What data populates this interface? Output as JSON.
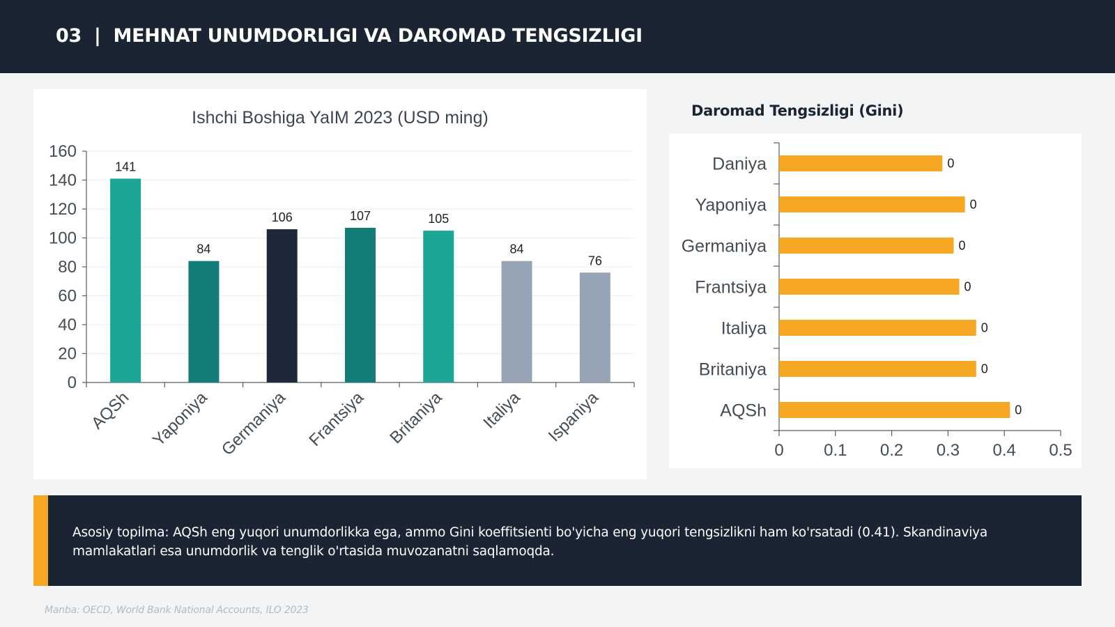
{
  "header": {
    "number": "03",
    "separator": "|",
    "title": "MEHNAT UNUMDORLIGI VA DAROMAD TENGSIZLIGI"
  },
  "colors": {
    "header_bg": "#1b2432",
    "accent": "#f5a623",
    "teal": "#1aa594",
    "dark_teal": "#137d78",
    "navy": "#1e2838",
    "gray": "#97a4b5"
  },
  "chart_data": [
    {
      "type": "bar",
      "title": "Ishchi Boshiga YaIM 2023 (USD ming)",
      "categories": [
        "AQSh",
        "Yaponiya",
        "Germaniya",
        "Frantsiya",
        "Britaniya",
        "Italiya",
        "Ispaniya"
      ],
      "values": [
        141,
        84,
        106,
        107,
        105,
        84,
        76
      ],
      "data_labels": [
        "141",
        "84",
        "106",
        "107",
        "105",
        "84",
        "76"
      ],
      "bar_colors": [
        "#1aa594",
        "#137d78",
        "#1e2838",
        "#137d78",
        "#1aa594",
        "#97a4b5",
        "#97a4b5"
      ],
      "ylim": [
        0,
        160
      ],
      "yticks": [
        "0",
        "20",
        "40",
        "60",
        "80",
        "100",
        "120",
        "140",
        "160"
      ],
      "grid": true,
      "xlabel": "",
      "ylabel": ""
    },
    {
      "type": "bar",
      "orientation": "horizontal",
      "title": "Daromad Tengsizligi (Gini)",
      "categories": [
        "Daniya",
        "Yaponiya",
        "Germaniya",
        "Frantsiya",
        "Italiya",
        "Britaniya",
        "AQSh"
      ],
      "values": [
        0.29,
        0.33,
        0.31,
        0.32,
        0.35,
        0.35,
        0.41
      ],
      "data_labels": [
        "0",
        "0",
        "0",
        "0",
        "0",
        "0",
        "0"
      ],
      "bar_color": "#f5a623",
      "xlim": [
        0,
        0.5
      ],
      "xticks": [
        "0",
        "0.1",
        "0.2",
        "0.3",
        "0.4",
        "0.5"
      ],
      "grid": false,
      "xlabel": "",
      "ylabel": ""
    }
  ],
  "callout": {
    "text": "Asosiy topilma: AQSh eng yuqori unumdorlikka ega, ammo Gini koeffitsienti bo'yicha eng yuqori tengsizlikni ham ko'rsatadi (0.41). Skandinaviya mamlakatlari esa unumdorlik va tenglik o'rtasida muvozanatni saqlamoqda."
  },
  "source": "Manba: OECD, World Bank National Accounts, ILO 2023"
}
